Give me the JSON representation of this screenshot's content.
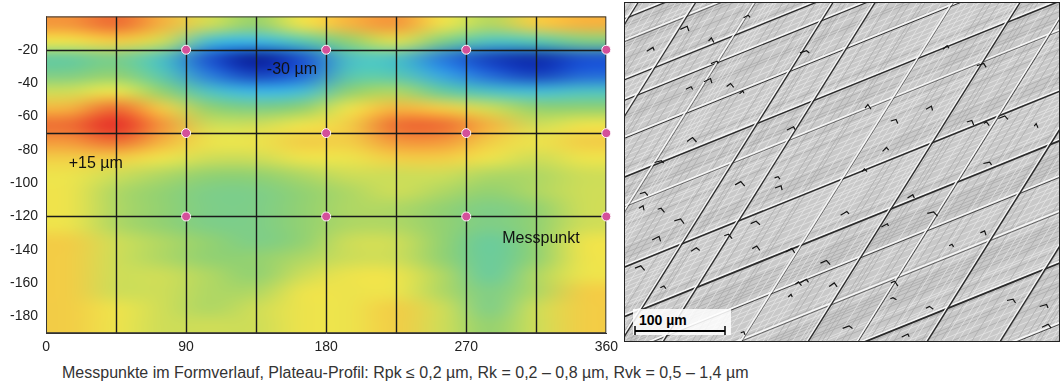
{
  "chart_data": {
    "type": "heatmap",
    "xlim": [
      0,
      360
    ],
    "xticks": [
      0,
      90,
      180,
      270,
      360
    ],
    "ylim": [
      -190,
      0
    ],
    "yticks": [
      -20,
      -40,
      -60,
      -80,
      -100,
      -120,
      -140,
      -160,
      -180
    ],
    "grid": false,
    "guide_lines": {
      "x": [
        45,
        90,
        135,
        180,
        225,
        270,
        315
      ],
      "y": [
        -20,
        -70,
        -120
      ]
    },
    "cells": {
      "x": [
        15,
        45,
        75,
        105,
        135,
        165,
        195,
        225,
        255,
        285,
        315,
        345
      ],
      "y": [
        -5,
        -15,
        -25,
        -35,
        -45,
        -55,
        -65,
        -75,
        -85,
        -95,
        -105,
        -115,
        -125,
        -135,
        -145,
        -155,
        -165,
        -175,
        -185
      ],
      "z": [
        [
          10,
          12,
          8,
          2,
          -2,
          4,
          8,
          10,
          4,
          0,
          6,
          8
        ],
        [
          4,
          6,
          2,
          -12,
          -14,
          -8,
          -2,
          3,
          -4,
          -10,
          -8,
          -4
        ],
        [
          -6,
          -4,
          -10,
          -24,
          -30,
          -24,
          -10,
          -10,
          -20,
          -26,
          -28,
          -24
        ],
        [
          -4,
          -2,
          -8,
          -20,
          -26,
          -22,
          -8,
          -8,
          -16,
          -22,
          -26,
          -22
        ],
        [
          2,
          4,
          -2,
          -10,
          -14,
          -12,
          -2,
          0,
          -6,
          -10,
          -12,
          -10
        ],
        [
          8,
          12,
          6,
          -2,
          -4,
          -2,
          4,
          8,
          6,
          2,
          -2,
          -2
        ],
        [
          12,
          15,
          10,
          2,
          2,
          4,
          6,
          12,
          12,
          8,
          2,
          4
        ],
        [
          10,
          12,
          8,
          4,
          4,
          6,
          6,
          10,
          10,
          6,
          4,
          6
        ],
        [
          6,
          6,
          4,
          2,
          2,
          4,
          4,
          6,
          6,
          4,
          2,
          4
        ],
        [
          4,
          2,
          0,
          -2,
          -2,
          0,
          2,
          2,
          2,
          0,
          0,
          2
        ],
        [
          4,
          0,
          -2,
          -4,
          -4,
          -2,
          0,
          2,
          0,
          -2,
          0,
          2
        ],
        [
          4,
          0,
          -2,
          -4,
          -4,
          -2,
          0,
          0,
          -2,
          -4,
          -2,
          2
        ],
        [
          4,
          0,
          -2,
          -4,
          -4,
          -2,
          0,
          0,
          -2,
          -4,
          -2,
          2
        ],
        [
          6,
          2,
          0,
          -2,
          -4,
          -2,
          2,
          2,
          -2,
          -6,
          -2,
          4
        ],
        [
          6,
          2,
          0,
          -2,
          -2,
          0,
          2,
          2,
          -2,
          -6,
          -2,
          4
        ],
        [
          6,
          2,
          2,
          0,
          -2,
          2,
          4,
          4,
          0,
          -6,
          0,
          4
        ],
        [
          6,
          2,
          2,
          0,
          0,
          4,
          4,
          4,
          0,
          -4,
          0,
          6
        ],
        [
          6,
          4,
          2,
          0,
          2,
          4,
          4,
          6,
          2,
          -4,
          2,
          6
        ],
        [
          6,
          4,
          2,
          2,
          2,
          4,
          4,
          6,
          2,
          -2,
          2,
          6
        ]
      ]
    },
    "zlim": [
      -30,
      15
    ],
    "measurement_points": {
      "color": "#d4509a",
      "x": [
        90,
        180,
        270,
        360,
        90,
        180,
        270,
        360,
        90,
        180,
        270,
        360
      ],
      "y": [
        -20,
        -20,
        -20,
        -20,
        -70,
        -70,
        -70,
        -70,
        -120,
        -120,
        -120,
        -120
      ]
    },
    "annotations": [
      {
        "text": "-30 µm",
        "x": 158,
        "y": -32
      },
      {
        "text": "+15 µm",
        "x": 32,
        "y": -88
      },
      {
        "text": "Messpunkt",
        "x": 318,
        "y": -133
      }
    ]
  },
  "photo": {
    "scale_bar": "100 µm"
  },
  "caption": "Messpunkte im Formverlauf, Plateau-Profil: Rpk ≤ 0,2 µm, Rk = 0,2 – 0,8 µm, Rvk = 0,5 – 1,4 µm"
}
